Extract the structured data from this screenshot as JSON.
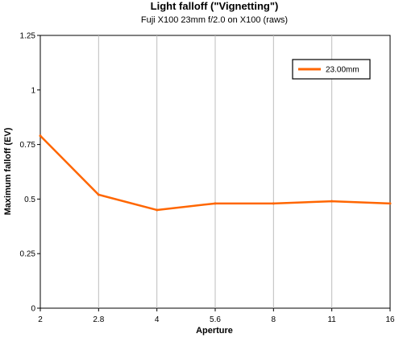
{
  "chart_data": {
    "type": "line",
    "title": "Light falloff (\"Vignetting\")",
    "subtitle": "Fuji X100 23mm f/2.0 on X100 (raws)",
    "xlabel": "Aperture",
    "ylabel": "Maximum falloff (EV)",
    "x_categories": [
      "2",
      "2.8",
      "4",
      "5.6",
      "8",
      "11",
      "16"
    ],
    "y_ticks": [
      "0",
      "0.25",
      "0.5",
      "0.75",
      "1",
      "1.25"
    ],
    "ylim": [
      0,
      1.25
    ],
    "grid": "vertical",
    "legend_position": "top-right",
    "series": [
      {
        "name": "23.00mm",
        "color": "#ff6600",
        "values": [
          0.79,
          0.52,
          0.45,
          0.48,
          0.48,
          0.49,
          0.48
        ]
      }
    ]
  }
}
